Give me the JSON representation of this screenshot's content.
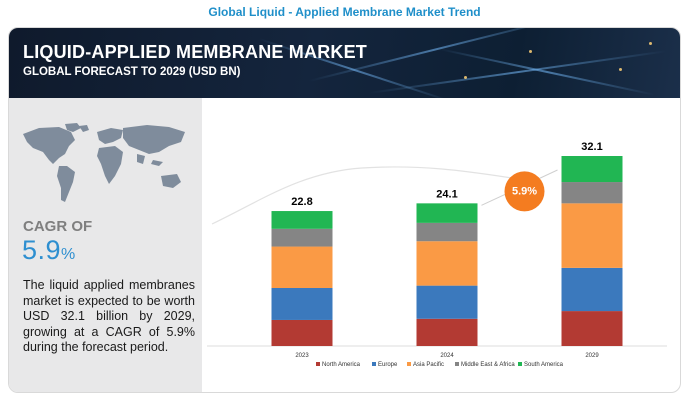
{
  "page_title": "Global Liquid - Applied Membrane Market Trend",
  "banner": {
    "title": "LIQUID-APPLIED MEMBRANE MARKET",
    "subtitle": "GLOBAL FORECAST TO 2029 (USD BN)"
  },
  "left_panel": {
    "cagr_label": "CAGR OF",
    "cagr_value": "5.9",
    "cagr_unit": "%",
    "description": "The liquid applied membranes market is expected to be worth USD 32.1 billion by 2029, growing at a CAGR of 5.9% during the forecast period."
  },
  "cagr_badge": "5.9%",
  "colors": {
    "north_america": "#b33a33",
    "europe": "#3b79bd",
    "asia_pacific": "#fa9a45",
    "middle_east_africa": "#858585",
    "south_america": "#21b653",
    "badge": "#f47c20",
    "accent": "#2e8fd0"
  },
  "chart_data": {
    "type": "bar",
    "stacked": true,
    "title": "LIQUID-APPLIED MEMBRANE MARKET",
    "subtitle": "GLOBAL FORECAST TO 2029 (USD BN)",
    "categories": [
      "2023",
      "2024",
      "2029"
    ],
    "totals": [
      22.8,
      24.1,
      32.1
    ],
    "total_labels": [
      "22.8",
      "24.1",
      "32.1"
    ],
    "series": [
      {
        "name": "North America",
        "color": "#b33a33",
        "values": [
          4.4,
          4.6,
          5.9
        ]
      },
      {
        "name": "Europe",
        "color": "#3b79bd",
        "values": [
          5.4,
          5.6,
          7.3
        ]
      },
      {
        "name": "Asia Pacific",
        "color": "#fa9a45",
        "values": [
          7.0,
          7.5,
          10.9
        ]
      },
      {
        "name": "Middle East & Africa",
        "color": "#858585",
        "values": [
          3.0,
          3.1,
          3.6
        ]
      },
      {
        "name": "South America",
        "color": "#21b653",
        "values": [
          3.0,
          3.3,
          4.4
        ]
      }
    ],
    "ylim": [
      0,
      32.1
    ],
    "legend_position": "bottom",
    "grid": false,
    "annotation": "5.9%"
  }
}
